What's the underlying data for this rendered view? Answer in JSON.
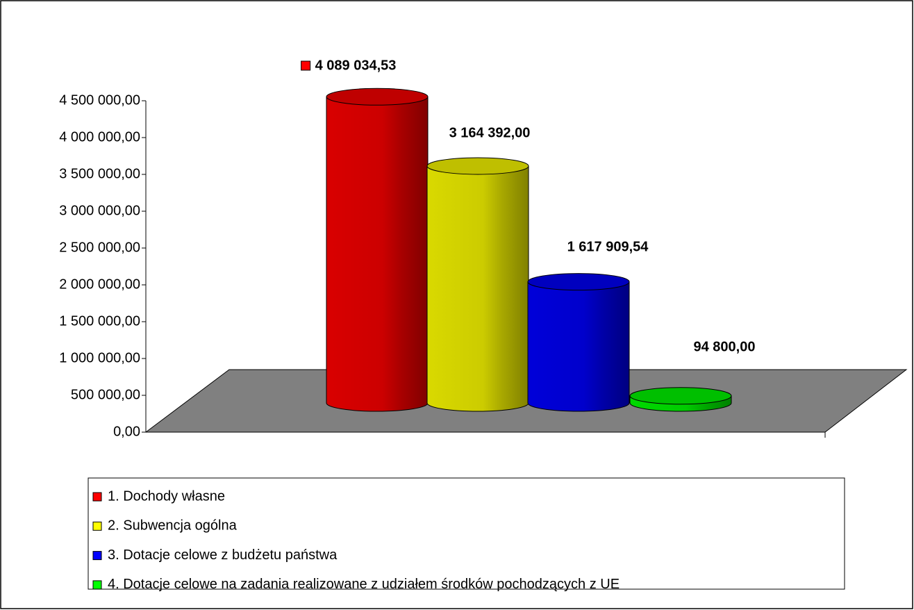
{
  "chart_data": {
    "type": "cylinder",
    "categories": [
      null
    ],
    "series": [
      {
        "name": "1. Dochody własne",
        "color": "#ff0000",
        "values": [
          4089034.53
        ],
        "value_labels": [
          "4 089 034,53"
        ]
      },
      {
        "name": "2. Subwencja ogólna",
        "color": "#ffff00",
        "values": [
          3164392.0
        ],
        "value_labels": [
          "3 164 392,00"
        ]
      },
      {
        "name": "3. Dotacje celowe z budżetu państwa",
        "color": "#0000ff",
        "values": [
          1617909.54
        ],
        "value_labels": [
          "1 617 909,54"
        ]
      },
      {
        "name": "4. Dotacje celowe na zadania realizowane z udziałem środków pochodzących z UE",
        "color": "#00ff00",
        "values": [
          94800.0
        ],
        "value_labels": [
          "94 800,00"
        ]
      }
    ],
    "ylim": [
      0,
      4500000
    ],
    "yticks": [
      {
        "value": 0,
        "label": "0,00"
      },
      {
        "value": 500000,
        "label": "500 000,00"
      },
      {
        "value": 1000000,
        "label": "1 000 000,00"
      },
      {
        "value": 1500000,
        "label": "1 500 000,00"
      },
      {
        "value": 2000000,
        "label": "2 000 000,00"
      },
      {
        "value": 2500000,
        "label": "2 500 000,00"
      },
      {
        "value": 3000000,
        "label": "3 000 000,00"
      },
      {
        "value": 3500000,
        "label": "3 500 000,00"
      },
      {
        "value": 4000000,
        "label": "4 000 000,00"
      },
      {
        "value": 4500000,
        "label": "4 500 000,00"
      }
    ],
    "floor_color": "#808080",
    "legend": "bottom"
  }
}
